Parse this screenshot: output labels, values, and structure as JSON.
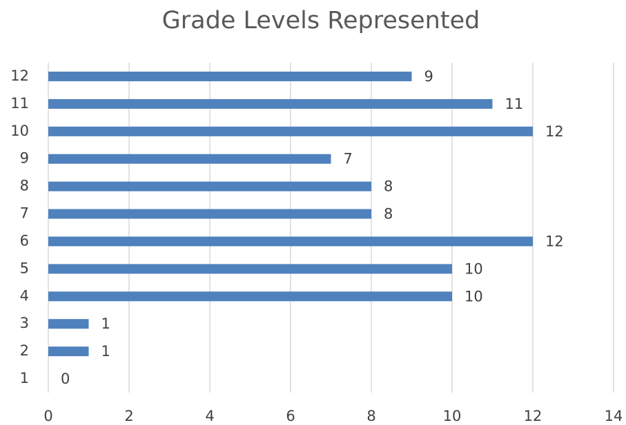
{
  "chart_data": {
    "type": "barh",
    "title": "Grade Levels Represented",
    "categories": [
      "1",
      "2",
      "3",
      "4",
      "5",
      "6",
      "7",
      "8",
      "9",
      "10",
      "11",
      "12"
    ],
    "values": [
      0,
      1,
      1,
      10,
      10,
      12,
      8,
      8,
      7,
      12,
      11,
      9
    ],
    "color": "#4f81bd",
    "xlim": [
      0,
      14
    ],
    "xticks": [
      0,
      2,
      4,
      6,
      8,
      10,
      12,
      14
    ],
    "grid": true
  }
}
